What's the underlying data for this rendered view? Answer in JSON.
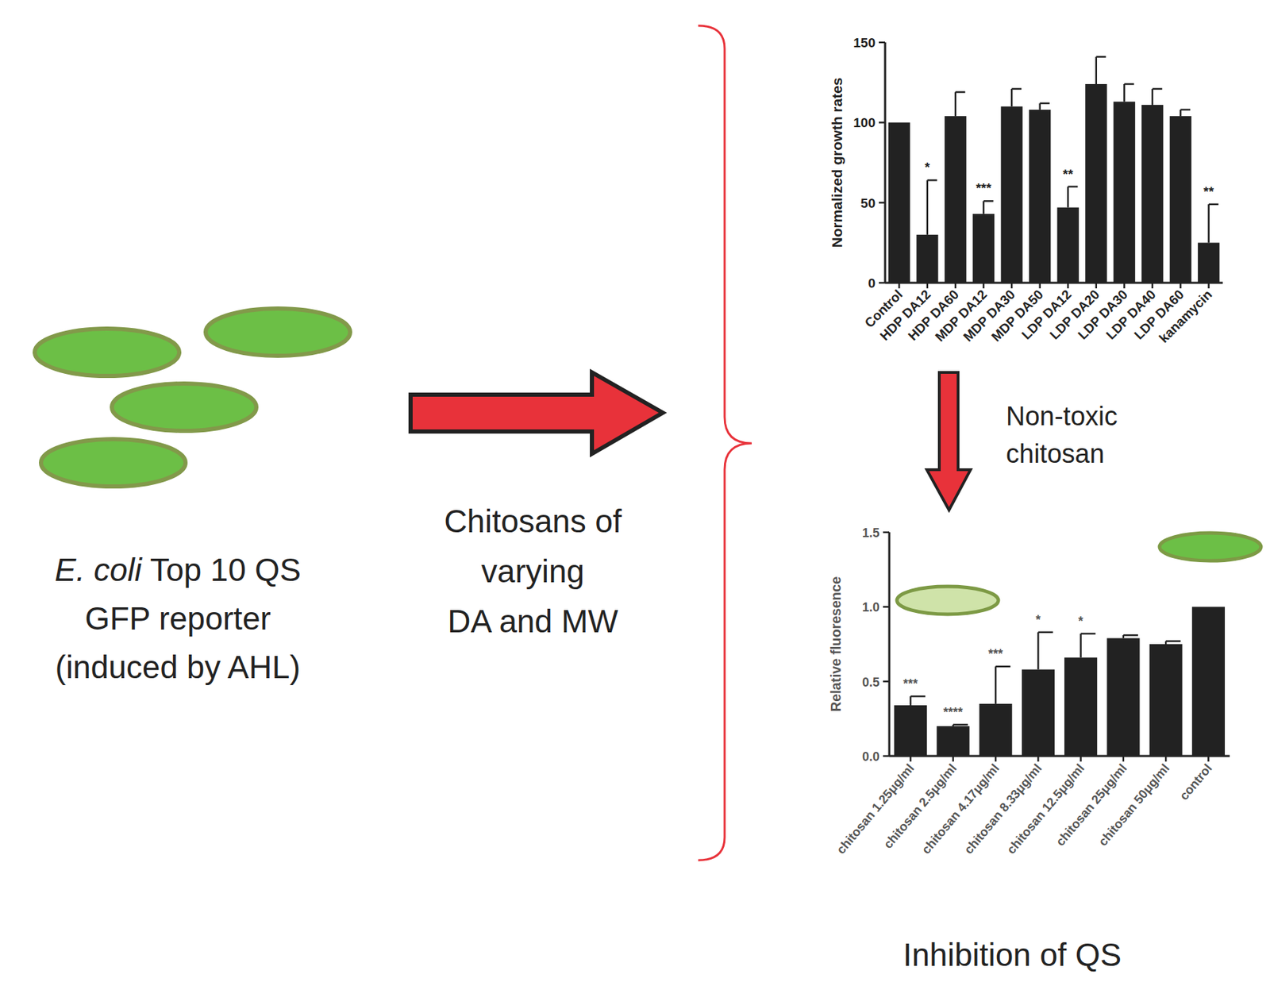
{
  "chart_data": [
    {
      "type": "bar",
      "y_label": "Normalized growth rates",
      "categories": [
        "Control",
        "HDP DA12",
        "HDP DA60",
        "MDP DA12",
        "MDP DA30",
        "MDP DA50",
        "LDP DA12",
        "LDP DA20",
        "LDP DA30",
        "LDP DA40",
        "LDP DA60",
        "kanamycin"
      ],
      "values": [
        100,
        30,
        104,
        43,
        110,
        108,
        47,
        124,
        113,
        111,
        104,
        25
      ],
      "errors": [
        null,
        34,
        15,
        8,
        11,
        4,
        13,
        17,
        11,
        10,
        4,
        24
      ],
      "annotations": [
        null,
        "*",
        null,
        "***",
        null,
        null,
        "**",
        null,
        null,
        null,
        null,
        "**"
      ],
      "color": "#222222",
      "ylim": [
        0,
        150
      ],
      "yticks": [
        0,
        50,
        100,
        150
      ]
    },
    {
      "type": "bar",
      "y_label": "Relative fluoresence",
      "categories": [
        "chitosan 1.25μg/ml",
        "chitosan 2.5μg/ml",
        "chitosan 4.17μg/ml",
        "chitosan 8.33μg/ml",
        "chitosan 12.5μg/ml",
        "chitosan 25μg/ml",
        "chitosan 50μg/ml",
        "control"
      ],
      "values": [
        0.34,
        0.2,
        0.35,
        0.58,
        0.66,
        0.79,
        0.75,
        1.0
      ],
      "errors": [
        0.06,
        0.01,
        0.25,
        0.25,
        0.16,
        0.02,
        0.02,
        null
      ],
      "annotations": [
        "***",
        "****",
        "***",
        "*",
        "*",
        null,
        null,
        null
      ],
      "color": "#222222",
      "ylim": [
        0,
        1.5
      ],
      "yticks": [
        {
          "value": 0,
          "label": "0.0"
        },
        {
          "value": 0.5,
          "label": "0.5"
        },
        {
          "value": 1,
          "label": "1.0"
        },
        {
          "value": 1.5,
          "label": "1.5"
        }
      ]
    }
  ],
  "diagram": {
    "left_label": {
      "species": "E. coli",
      "lines": [
        "Top 10 QS",
        "GFP reporter",
        "(induced by AHL)"
      ]
    },
    "arrow_label": [
      "Chitosans of",
      "varying",
      "DA and MW"
    ],
    "down_label": [
      "Non-toxic",
      "chitosan"
    ],
    "bottom_label": "Inhibition of QS"
  }
}
